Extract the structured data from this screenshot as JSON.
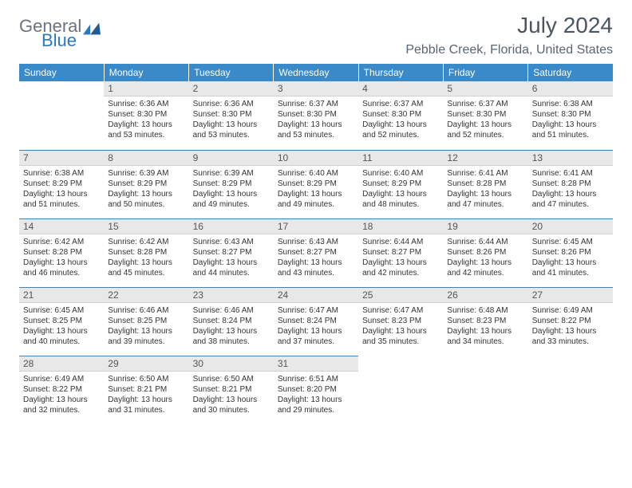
{
  "brand": {
    "part1": "General",
    "part2": "Blue",
    "mark_color": "#2a78c2"
  },
  "title": "July 2024",
  "location": "Pebble Creek, Florida, United States",
  "colors": {
    "header_bg": "#3a8ac9",
    "header_text": "#ffffff",
    "daynum_bg": "#e8e8e8",
    "row_border": "#4a7fb0",
    "text": "#333333",
    "title_color": "#4a5560"
  },
  "weekdays": [
    "Sunday",
    "Monday",
    "Tuesday",
    "Wednesday",
    "Thursday",
    "Friday",
    "Saturday"
  ],
  "weeks": [
    [
      null,
      {
        "n": "1",
        "sr": "Sunrise: 6:36 AM",
        "ss": "Sunset: 8:30 PM",
        "dl": "Daylight: 13 hours and 53 minutes."
      },
      {
        "n": "2",
        "sr": "Sunrise: 6:36 AM",
        "ss": "Sunset: 8:30 PM",
        "dl": "Daylight: 13 hours and 53 minutes."
      },
      {
        "n": "3",
        "sr": "Sunrise: 6:37 AM",
        "ss": "Sunset: 8:30 PM",
        "dl": "Daylight: 13 hours and 53 minutes."
      },
      {
        "n": "4",
        "sr": "Sunrise: 6:37 AM",
        "ss": "Sunset: 8:30 PM",
        "dl": "Daylight: 13 hours and 52 minutes."
      },
      {
        "n": "5",
        "sr": "Sunrise: 6:37 AM",
        "ss": "Sunset: 8:30 PM",
        "dl": "Daylight: 13 hours and 52 minutes."
      },
      {
        "n": "6",
        "sr": "Sunrise: 6:38 AM",
        "ss": "Sunset: 8:30 PM",
        "dl": "Daylight: 13 hours and 51 minutes."
      }
    ],
    [
      {
        "n": "7",
        "sr": "Sunrise: 6:38 AM",
        "ss": "Sunset: 8:29 PM",
        "dl": "Daylight: 13 hours and 51 minutes."
      },
      {
        "n": "8",
        "sr": "Sunrise: 6:39 AM",
        "ss": "Sunset: 8:29 PM",
        "dl": "Daylight: 13 hours and 50 minutes."
      },
      {
        "n": "9",
        "sr": "Sunrise: 6:39 AM",
        "ss": "Sunset: 8:29 PM",
        "dl": "Daylight: 13 hours and 49 minutes."
      },
      {
        "n": "10",
        "sr": "Sunrise: 6:40 AM",
        "ss": "Sunset: 8:29 PM",
        "dl": "Daylight: 13 hours and 49 minutes."
      },
      {
        "n": "11",
        "sr": "Sunrise: 6:40 AM",
        "ss": "Sunset: 8:29 PM",
        "dl": "Daylight: 13 hours and 48 minutes."
      },
      {
        "n": "12",
        "sr": "Sunrise: 6:41 AM",
        "ss": "Sunset: 8:28 PM",
        "dl": "Daylight: 13 hours and 47 minutes."
      },
      {
        "n": "13",
        "sr": "Sunrise: 6:41 AM",
        "ss": "Sunset: 8:28 PM",
        "dl": "Daylight: 13 hours and 47 minutes."
      }
    ],
    [
      {
        "n": "14",
        "sr": "Sunrise: 6:42 AM",
        "ss": "Sunset: 8:28 PM",
        "dl": "Daylight: 13 hours and 46 minutes."
      },
      {
        "n": "15",
        "sr": "Sunrise: 6:42 AM",
        "ss": "Sunset: 8:28 PM",
        "dl": "Daylight: 13 hours and 45 minutes."
      },
      {
        "n": "16",
        "sr": "Sunrise: 6:43 AM",
        "ss": "Sunset: 8:27 PM",
        "dl": "Daylight: 13 hours and 44 minutes."
      },
      {
        "n": "17",
        "sr": "Sunrise: 6:43 AM",
        "ss": "Sunset: 8:27 PM",
        "dl": "Daylight: 13 hours and 43 minutes."
      },
      {
        "n": "18",
        "sr": "Sunrise: 6:44 AM",
        "ss": "Sunset: 8:27 PM",
        "dl": "Daylight: 13 hours and 42 minutes."
      },
      {
        "n": "19",
        "sr": "Sunrise: 6:44 AM",
        "ss": "Sunset: 8:26 PM",
        "dl": "Daylight: 13 hours and 42 minutes."
      },
      {
        "n": "20",
        "sr": "Sunrise: 6:45 AM",
        "ss": "Sunset: 8:26 PM",
        "dl": "Daylight: 13 hours and 41 minutes."
      }
    ],
    [
      {
        "n": "21",
        "sr": "Sunrise: 6:45 AM",
        "ss": "Sunset: 8:25 PM",
        "dl": "Daylight: 13 hours and 40 minutes."
      },
      {
        "n": "22",
        "sr": "Sunrise: 6:46 AM",
        "ss": "Sunset: 8:25 PM",
        "dl": "Daylight: 13 hours and 39 minutes."
      },
      {
        "n": "23",
        "sr": "Sunrise: 6:46 AM",
        "ss": "Sunset: 8:24 PM",
        "dl": "Daylight: 13 hours and 38 minutes."
      },
      {
        "n": "24",
        "sr": "Sunrise: 6:47 AM",
        "ss": "Sunset: 8:24 PM",
        "dl": "Daylight: 13 hours and 37 minutes."
      },
      {
        "n": "25",
        "sr": "Sunrise: 6:47 AM",
        "ss": "Sunset: 8:23 PM",
        "dl": "Daylight: 13 hours and 35 minutes."
      },
      {
        "n": "26",
        "sr": "Sunrise: 6:48 AM",
        "ss": "Sunset: 8:23 PM",
        "dl": "Daylight: 13 hours and 34 minutes."
      },
      {
        "n": "27",
        "sr": "Sunrise: 6:49 AM",
        "ss": "Sunset: 8:22 PM",
        "dl": "Daylight: 13 hours and 33 minutes."
      }
    ],
    [
      {
        "n": "28",
        "sr": "Sunrise: 6:49 AM",
        "ss": "Sunset: 8:22 PM",
        "dl": "Daylight: 13 hours and 32 minutes."
      },
      {
        "n": "29",
        "sr": "Sunrise: 6:50 AM",
        "ss": "Sunset: 8:21 PM",
        "dl": "Daylight: 13 hours and 31 minutes."
      },
      {
        "n": "30",
        "sr": "Sunrise: 6:50 AM",
        "ss": "Sunset: 8:21 PM",
        "dl": "Daylight: 13 hours and 30 minutes."
      },
      {
        "n": "31",
        "sr": "Sunrise: 6:51 AM",
        "ss": "Sunset: 8:20 PM",
        "dl": "Daylight: 13 hours and 29 minutes."
      },
      null,
      null,
      null
    ]
  ]
}
